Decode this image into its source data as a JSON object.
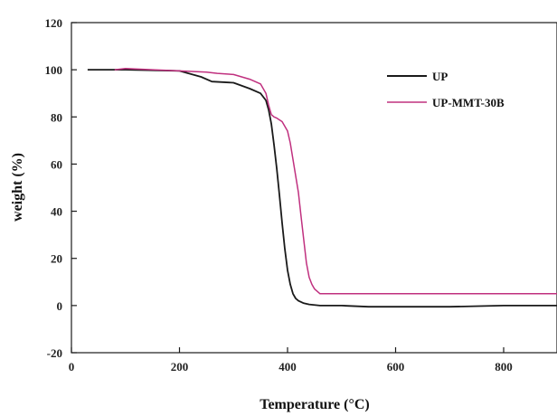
{
  "chart_data": {
    "type": "line",
    "xlabel": "Temperature (°C)",
    "ylabel": "weight (%)",
    "xlim": [
      0,
      900
    ],
    "ylim": [
      -20,
      120
    ],
    "xticks": [
      0,
      200,
      400,
      600,
      800
    ],
    "yticks": [
      -20,
      0,
      20,
      40,
      60,
      80,
      100,
      120
    ],
    "grid": false,
    "legend_position": "top-right",
    "series": [
      {
        "name": "UP",
        "color": "#1a1a1a",
        "x": [
          30,
          100,
          200,
          240,
          260,
          300,
          330,
          350,
          360,
          365,
          370,
          375,
          380,
          385,
          390,
          395,
          400,
          405,
          410,
          415,
          420,
          430,
          440,
          460,
          500,
          550,
          600,
          700,
          800,
          900
        ],
        "y": [
          100,
          100,
          99.5,
          97,
          95,
          94.5,
          92,
          90,
          87,
          83,
          77,
          68,
          58,
          47,
          35,
          24,
          15,
          9,
          5,
          3,
          2,
          1,
          0.5,
          0,
          0,
          -0.5,
          -0.5,
          -0.5,
          0,
          0
        ]
      },
      {
        "name": "UP-MMT-30B",
        "color": "#c0307f",
        "x": [
          80,
          100,
          150,
          200,
          250,
          270,
          300,
          330,
          350,
          360,
          365,
          370,
          375,
          380,
          390,
          400,
          405,
          410,
          415,
          420,
          425,
          430,
          435,
          440,
          445,
          450,
          460,
          470,
          500,
          600,
          700,
          800,
          900
        ],
        "y": [
          100,
          100.5,
          100,
          99.5,
          99,
          98.5,
          98,
          96,
          94,
          90,
          85,
          81,
          80,
          79.5,
          78,
          74,
          69,
          62,
          55,
          48,
          38,
          28,
          18,
          12,
          9,
          7,
          5,
          5,
          5,
          5,
          5,
          5,
          5
        ]
      }
    ]
  }
}
